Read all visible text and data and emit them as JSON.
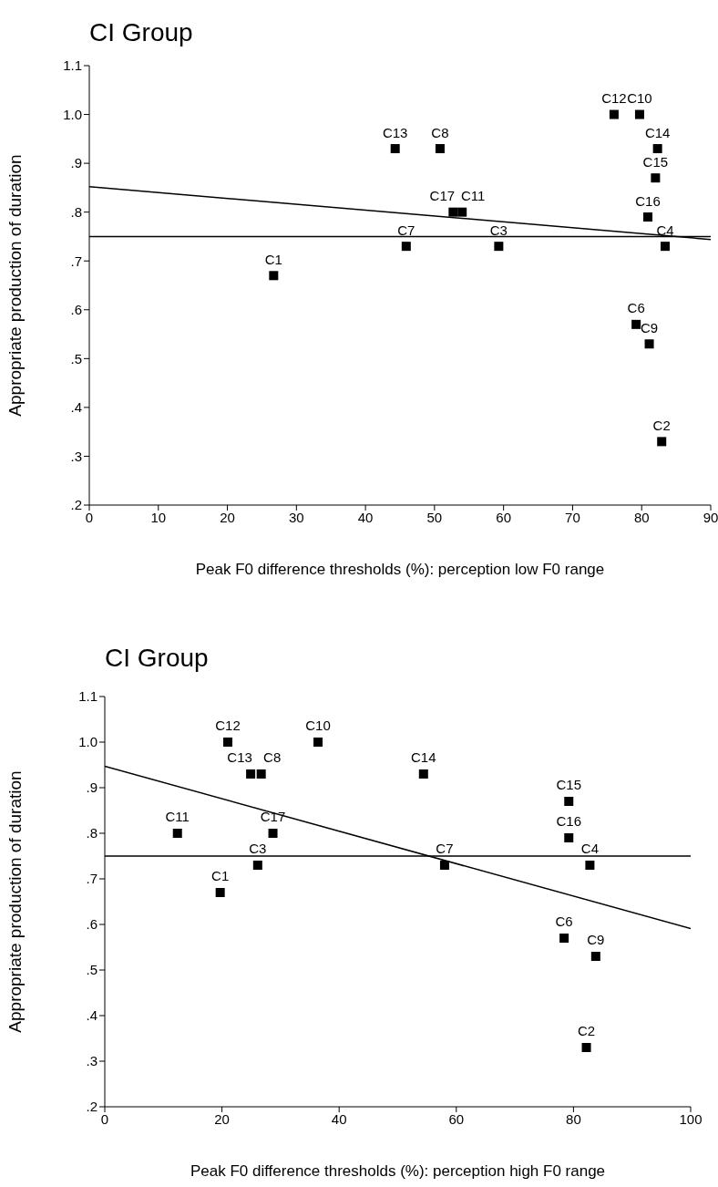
{
  "chart_data": [
    {
      "type": "scatter",
      "title": "CI Group",
      "xlabel": "Peak F0 difference thresholds (%): perception low F0 range",
      "ylabel": "Appropriate production of duration",
      "marker": "square",
      "xlim": [
        0,
        90
      ],
      "xticks": [
        0,
        10,
        20,
        30,
        40,
        50,
        60,
        70,
        80,
        90
      ],
      "ylim": [
        0.2,
        1.1
      ],
      "yticks": [
        {
          "value": 0.2,
          "label": ".2"
        },
        {
          "value": 0.3,
          "label": ".3"
        },
        {
          "value": 0.4,
          "label": ".4"
        },
        {
          "value": 0.5,
          "label": ".5"
        },
        {
          "value": 0.6,
          "label": ".6"
        },
        {
          "value": 0.7,
          "label": ".7"
        },
        {
          "value": 0.8,
          "label": ".8"
        },
        {
          "value": 0.9,
          "label": ".9"
        },
        {
          "value": 1,
          "label": "1.0"
        },
        1.1
      ],
      "series": [
        {
          "color": "#000000",
          "x": [
            26.7,
            82.9,
            59.3,
            83.4,
            79.2,
            45.9,
            50.8,
            81.1,
            79.7,
            54.0,
            76.0,
            44.3,
            82.3,
            82.0,
            80.9,
            52.7
          ],
          "values": [
            0.67,
            0.33,
            0.73,
            0.73,
            0.57,
            0.73,
            0.93,
            0.53,
            1.0,
            0.8,
            1.0,
            0.93,
            0.93,
            0.87,
            0.79,
            0.8
          ],
          "value_labels": [
            "C1",
            "C2",
            "C3",
            "C4",
            "C6",
            "C7",
            "C8",
            "C9",
            "C10",
            "C11",
            "C12",
            "C13",
            "C14",
            "C15",
            "C16",
            "C17"
          ]
        },
        {
          "type": "line",
          "marker": "none",
          "color": "#000000",
          "x": [
            0,
            90
          ],
          "values": [
            0.852,
            0.744
          ]
        }
      ],
      "ref_lines": [
        {
          "axis": "y",
          "value": 0.75,
          "color": "#000000"
        }
      ]
    },
    {
      "type": "scatter",
      "title": "CI Group",
      "xlabel": "Peak F0 difference thresholds (%): perception high F0 range",
      "ylabel": "Appropriate production of duration",
      "marker": "square",
      "xlim": [
        0,
        100
      ],
      "xticks": [
        0,
        20,
        40,
        60,
        80,
        100
      ],
      "ylim": [
        0.2,
        1.1
      ],
      "yticks": [
        {
          "value": 0.2,
          "label": ".2"
        },
        {
          "value": 0.3,
          "label": ".3"
        },
        {
          "value": 0.4,
          "label": ".4"
        },
        {
          "value": 0.5,
          "label": ".5"
        },
        {
          "value": 0.6,
          "label": ".6"
        },
        {
          "value": 0.7,
          "label": ".7"
        },
        {
          "value": 0.8,
          "label": ".8"
        },
        {
          "value": 0.9,
          "label": ".9"
        },
        {
          "value": 1,
          "label": "1.0"
        },
        1.1
      ],
      "series": [
        {
          "color": "#000000",
          "x": [
            19.7,
            82.2,
            26.1,
            82.8,
            78.4,
            58.0,
            26.7,
            83.8,
            36.4,
            12.4,
            21.0,
            24.9,
            54.4,
            79.2,
            79.2,
            28.7
          ],
          "values": [
            0.67,
            0.33,
            0.73,
            0.73,
            0.57,
            0.73,
            0.93,
            0.53,
            1.0,
            0.8,
            1.0,
            0.93,
            0.93,
            0.87,
            0.79,
            0.8
          ],
          "value_labels": [
            "C1",
            "C2",
            "C3",
            "C4",
            "C6",
            "C7",
            "C8",
            "C9",
            "C10",
            "C11",
            "C12",
            "C13",
            "C14",
            "C15",
            "C16",
            "C17"
          ]
        },
        {
          "type": "line",
          "marker": "none",
          "color": "#000000",
          "x": [
            0,
            100
          ],
          "values": [
            0.947,
            0.591
          ]
        }
      ],
      "ref_lines": [
        {
          "axis": "y",
          "value": 0.75,
          "color": "#000000"
        }
      ]
    }
  ]
}
